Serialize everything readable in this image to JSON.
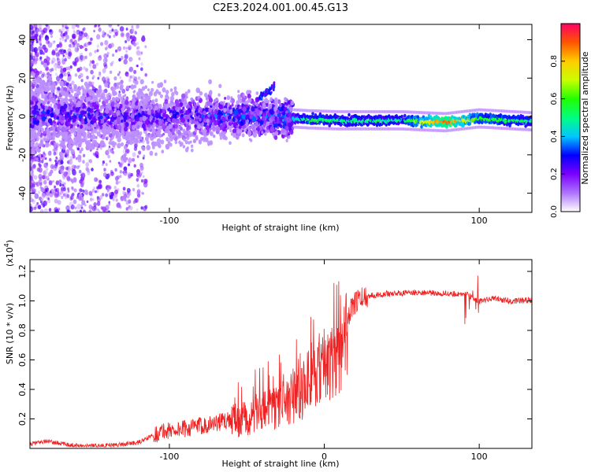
{
  "title": "C2E3.2024.001.00.45.G13",
  "chart_data": [
    {
      "type": "heatmap",
      "name": "spectrogram",
      "xlabel": "Height of straight line (km)",
      "ylabel": "Frequency (Hz)",
      "xlim": [
        -190,
        134
      ],
      "ylim": [
        -50,
        48
      ],
      "x_ticks": [
        -100,
        100
      ],
      "x_tick_labels": [
        "-100",
        "100"
      ],
      "y_ticks": [
        -40,
        -20,
        0,
        20,
        40
      ],
      "y_tick_labels": [
        "-40",
        "-20",
        "0",
        "20",
        "40"
      ],
      "colorbar": {
        "label": "Normalized spectral amplitude",
        "range": [
          0,
          1
        ],
        "ticks": [
          0.0,
          0.2,
          0.4,
          0.6,
          0.8
        ],
        "tick_labels": [
          "0.0",
          "0.2",
          "0.4",
          "0.6",
          "0.8"
        ],
        "colors": [
          "#ffffff",
          "#ad73ff",
          "#7a00ff",
          "#0000ff",
          "#00c8ff",
          "#00ff80",
          "#22ff00",
          "#c8ff00",
          "#ffcc00",
          "#ff5500",
          "#ff0066"
        ]
      },
      "carrier_track": [
        {
          "x": -190,
          "y": 1.5,
          "amp": 0.35
        },
        {
          "x": -150,
          "y": 0.0,
          "amp": 0.3
        },
        {
          "x": -100,
          "y": 0.0,
          "amp": 0.3
        },
        {
          "x": -60,
          "y": 0.5,
          "amp": 0.35
        },
        {
          "x": -20,
          "y": -1.0,
          "amp": 0.4
        },
        {
          "x": -10,
          "y": -1.5,
          "amp": 0.55
        },
        {
          "x": 10,
          "y": -2.0,
          "amp": 0.5
        },
        {
          "x": 50,
          "y": -2.0,
          "amp": 0.5
        },
        {
          "x": 78,
          "y": -3.0,
          "amp": 0.9
        },
        {
          "x": 100,
          "y": -1.0,
          "amp": 0.6
        },
        {
          "x": 134,
          "y": -2.5,
          "amp": 0.5
        }
      ],
      "annotations": [
        {
          "x": -34,
          "y": 16,
          "amp": 0.3,
          "note": "spur near 16 Hz"
        }
      ]
    },
    {
      "type": "line",
      "name": "snr",
      "xlabel": "Height of straight line (km)",
      "ylabel": "SNR (10 * v/v)",
      "y_scale_label": "(x10",
      "y_scale_exp": "4",
      "y_scale_close": ")",
      "xlim": [
        -190,
        134
      ],
      "ylim": [
        0,
        1.28
      ],
      "x_ticks": [
        -100,
        0,
        100
      ],
      "x_tick_labels": [
        "-100",
        "0",
        "100"
      ],
      "y_ticks": [
        0.2,
        0.4,
        0.6,
        0.8,
        1.0,
        1.2
      ],
      "y_tick_labels": [
        "0.2",
        "0.4",
        "0.6",
        "0.8",
        "1.0",
        "1.2"
      ],
      "color": "#ee2222",
      "series": [
        {
          "name": "SNR",
          "x": [
            -190,
            -180,
            -160,
            -140,
            -120,
            -105,
            -90,
            -80,
            -70,
            -60,
            -50,
            -40,
            -30,
            -20,
            -15,
            -10,
            -5,
            0,
            5,
            10,
            15,
            20,
            25,
            30,
            40,
            60,
            80,
            90,
            95,
            100,
            110,
            120,
            134
          ],
          "y": [
            0.03,
            0.05,
            0.02,
            0.02,
            0.04,
            0.12,
            0.14,
            0.16,
            0.18,
            0.2,
            0.22,
            0.26,
            0.3,
            0.36,
            0.38,
            0.5,
            0.55,
            0.6,
            0.62,
            0.68,
            0.9,
            1.0,
            1.03,
            1.04,
            1.05,
            1.06,
            1.05,
            1.05,
            1.03,
            1.0,
            1.02,
            1.0,
            1.01
          ]
        }
      ]
    }
  ]
}
